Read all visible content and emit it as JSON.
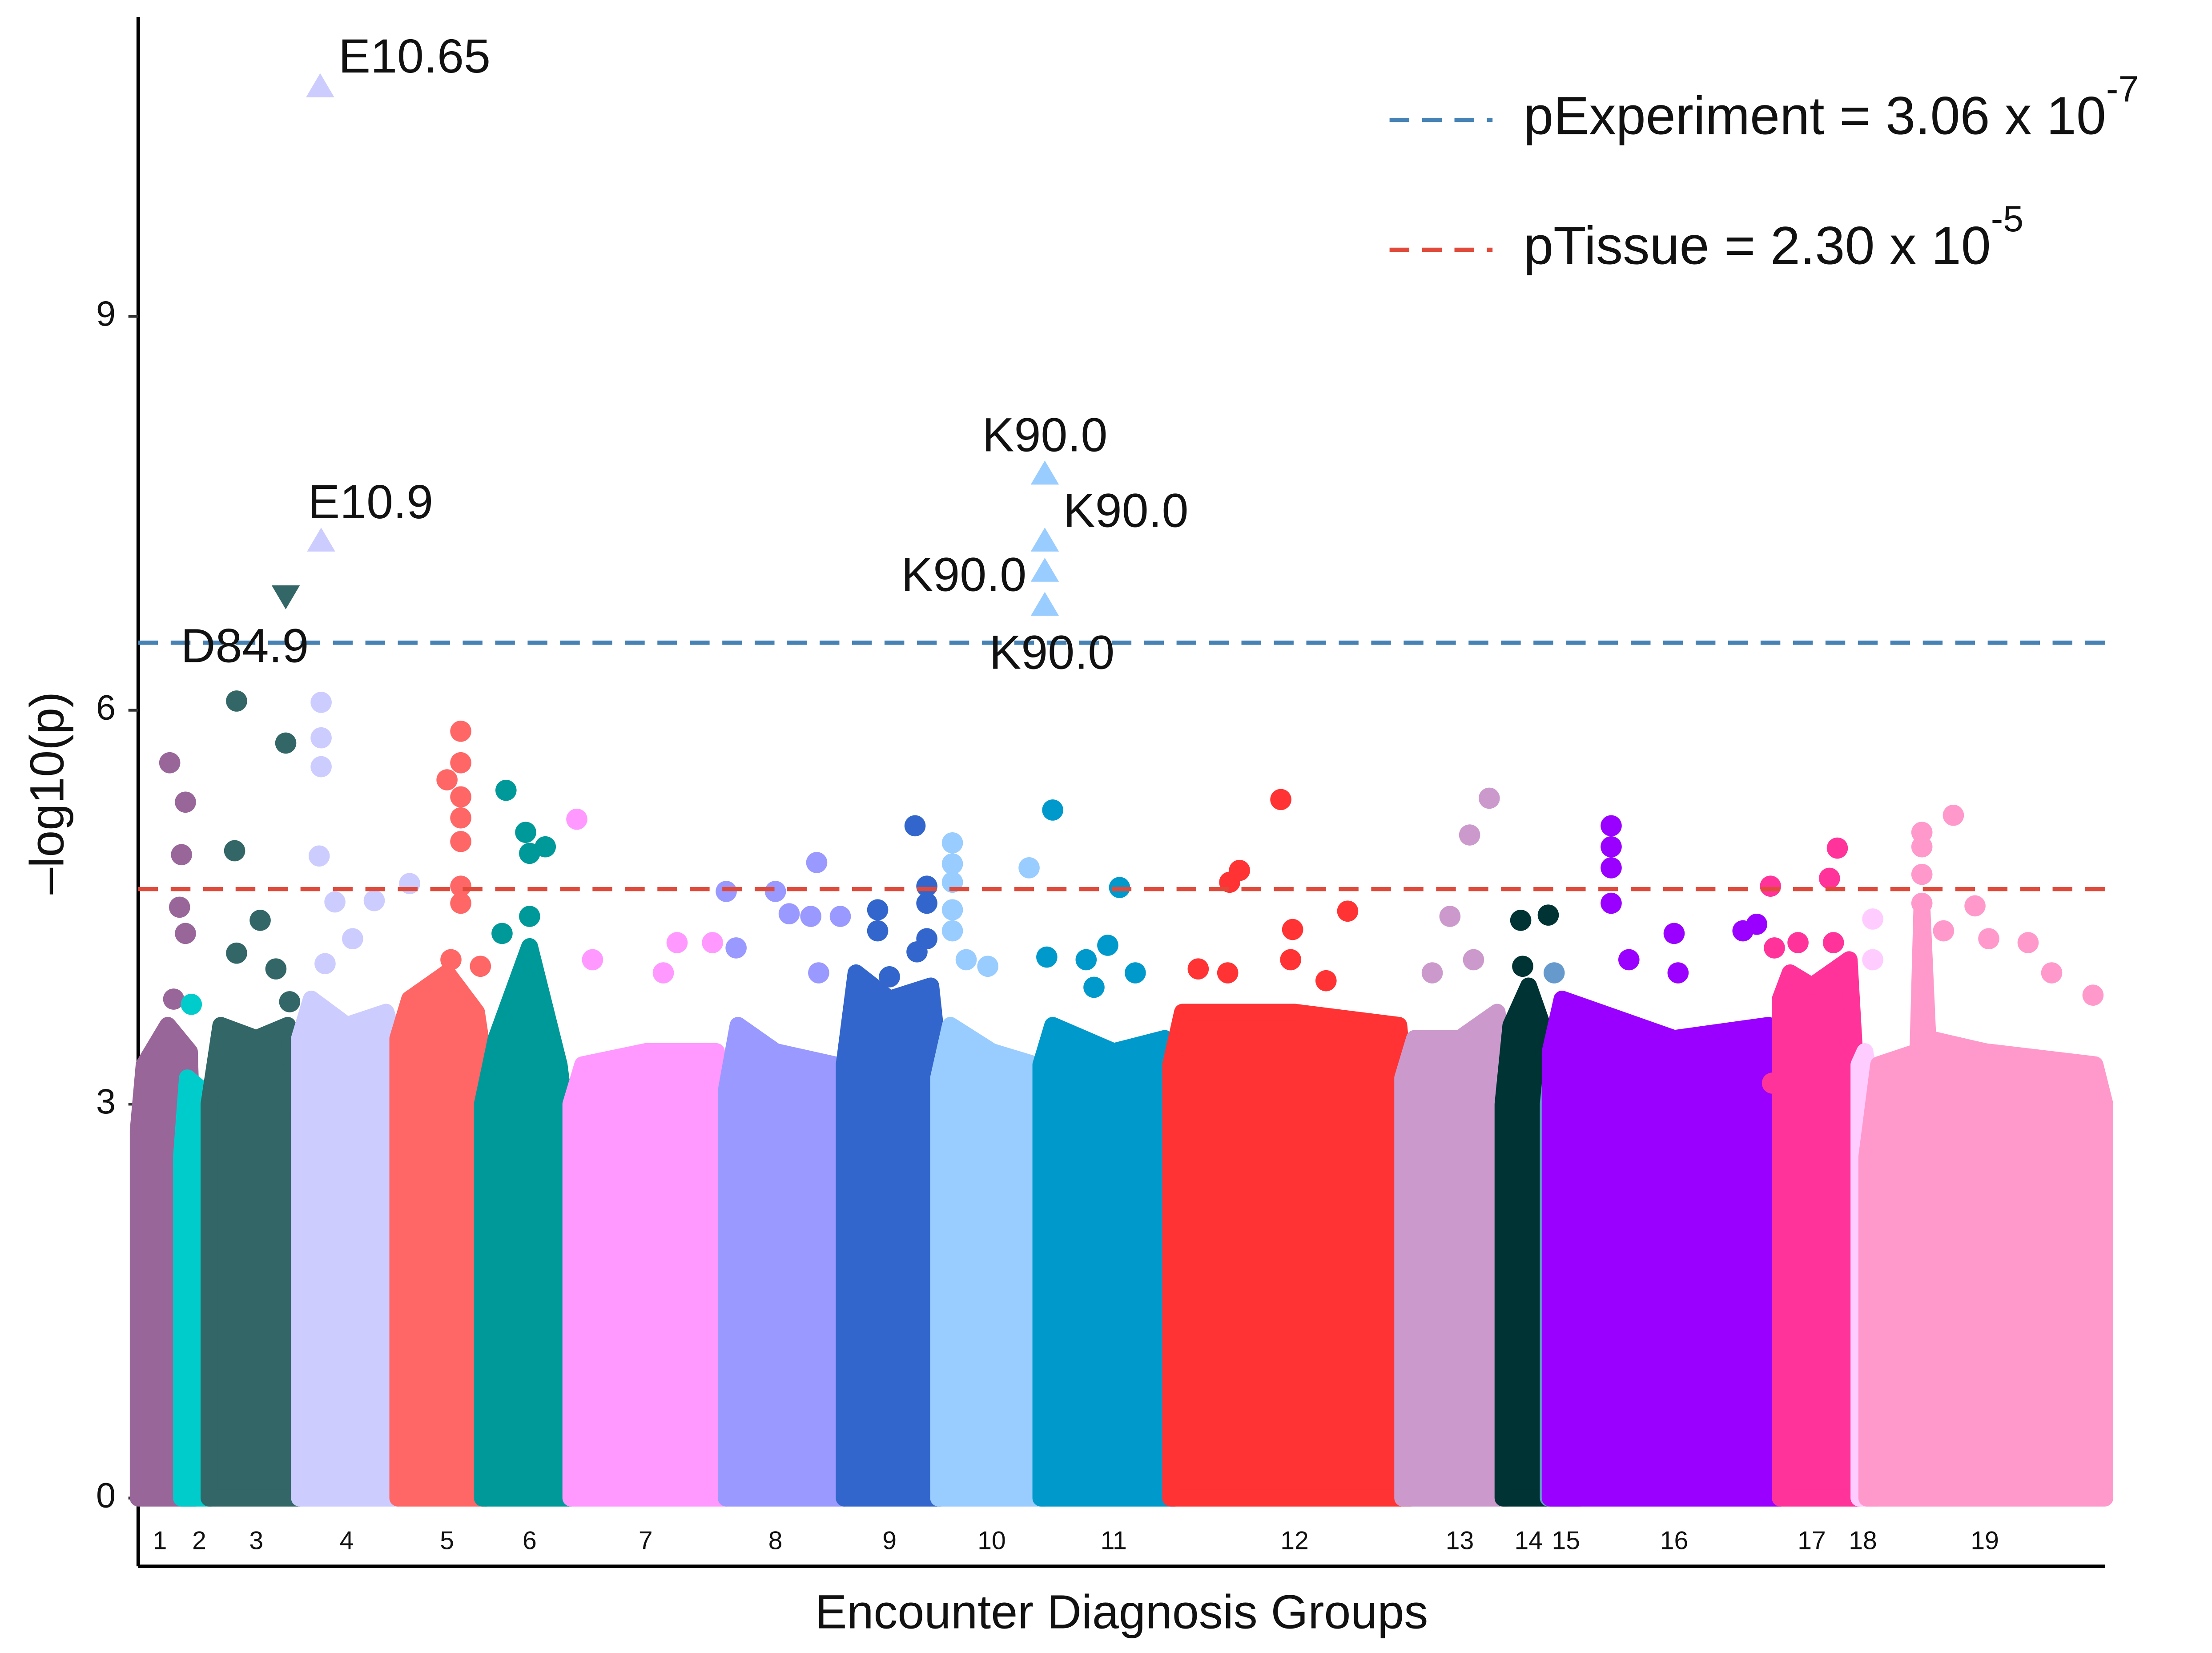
{
  "chart_data": {
    "type": "scatter",
    "x_label": "Encounter Diagnosis Groups",
    "y_label": "–log10(p)",
    "xlim": [
      0,
      100
    ],
    "ylim": [
      -0.52,
      11.28
    ],
    "yticks": [
      0,
      3,
      6,
      9
    ],
    "xticks": [
      {
        "value": 1.1,
        "label": "1"
      },
      {
        "value": 3.1,
        "label": "2"
      },
      {
        "value": 6.0,
        "label": "3"
      },
      {
        "value": 10.6,
        "label": "4"
      },
      {
        "value": 15.7,
        "label": "5"
      },
      {
        "value": 19.9,
        "label": "6"
      },
      {
        "value": 25.8,
        "label": "7"
      },
      {
        "value": 32.4,
        "label": "8"
      },
      {
        "value": 38.2,
        "label": "9"
      },
      {
        "value": 43.4,
        "label": "10"
      },
      {
        "value": 49.6,
        "label": "11"
      },
      {
        "value": 58.8,
        "label": "12"
      },
      {
        "value": 67.2,
        "label": "13"
      },
      {
        "value": 70.7,
        "label": "14"
      },
      {
        "value": 72.6,
        "label": "15"
      },
      {
        "value": 78.1,
        "label": "16"
      },
      {
        "value": 85.1,
        "label": "17"
      },
      {
        "value": 87.7,
        "label": "18"
      },
      {
        "value": 93.9,
        "label": "19"
      }
    ],
    "legend": "top-right",
    "hlines": [
      {
        "value": 6.514,
        "color": "#4682b4",
        "label": "pExperiment = 3.06 x 10",
        "exponent": "-7"
      },
      {
        "value": 4.638,
        "color": "#e04a3a",
        "label": "pTissue = 2.30 x 10",
        "exponent": "-5"
      }
    ],
    "series": [
      {
        "color": "#996699",
        "envelope": {
          "x": [
            0,
            0.3,
            1.5,
            2.6,
            2.9
          ],
          "values": [
            2.8,
            3.3,
            3.6,
            3.4,
            2.0
          ]
        },
        "x": [
          1.6,
          2.4,
          2.2,
          2.1,
          2.4,
          1.8
        ],
        "values": [
          5.6,
          5.3,
          4.9,
          4.5,
          4.3,
          3.8
        ]
      },
      {
        "color": "#00CCCC",
        "envelope": {
          "x": [
            2.2,
            2.5,
            3.3,
            3.7
          ],
          "values": [
            2.6,
            3.2,
            3.1,
            2.3
          ]
        },
        "x": [
          2.7
        ],
        "values": [
          3.76
        ]
      },
      {
        "color": "#336666",
        "envelope": {
          "x": [
            3.6,
            4.2,
            6.0,
            7.6,
            8.2
          ],
          "values": [
            3.0,
            3.6,
            3.5,
            3.6,
            2.8
          ]
        },
        "x": [
          5.0,
          4.9,
          7.5,
          6.2,
          5.0,
          7.0,
          7.7
        ],
        "values": [
          6.07,
          4.93,
          5.75,
          4.4,
          4.15,
          4.03,
          3.78
        ]
      },
      {
        "color": "#CCCCFF",
        "envelope": {
          "x": [
            8.2,
            8.8,
            10.6,
            12.6,
            13.2
          ],
          "values": [
            3.5,
            3.8,
            3.6,
            3.7,
            3.4
          ]
        },
        "x": [
          9.3,
          9.3,
          9.3,
          9.2,
          10.0,
          12.0,
          13.8,
          10.9,
          9.5
        ],
        "values": [
          6.06,
          5.79,
          5.57,
          4.89,
          4.54,
          4.55,
          4.68,
          4.26,
          4.07
        ]
      },
      {
        "color": "#FF6666",
        "envelope": {
          "x": [
            13.2,
            13.8,
            15.7,
            17.2,
            17.7
          ],
          "values": [
            3.5,
            3.8,
            4.0,
            3.7,
            3.2
          ]
        },
        "x": [
          16.4,
          16.4,
          15.7,
          16.4,
          16.4,
          16.4,
          16.4,
          16.4,
          15.9,
          17.4
        ],
        "values": [
          5.84,
          5.6,
          5.47,
          5.34,
          5.18,
          5.0,
          4.66,
          4.53,
          4.1,
          4.05
        ]
      },
      {
        "color": "#009999",
        "envelope": {
          "x": [
            17.5,
            18.2,
            19.9,
            21.4,
            22.0
          ],
          "values": [
            3.0,
            3.5,
            4.2,
            3.3,
            2.6
          ]
        },
        "x": [
          18.7,
          19.7,
          20.7,
          19.9,
          18.5,
          19.9
        ],
        "values": [
          5.39,
          5.07,
          4.96,
          4.91,
          4.3,
          4.43
        ]
      },
      {
        "color": "#FF99FF",
        "envelope": {
          "x": [
            22.0,
            22.6,
            25.8,
            29.4,
            29.9
          ],
          "values": [
            3.0,
            3.3,
            3.4,
            3.4,
            3.0
          ]
        },
        "x": [
          22.3,
          23.1,
          27.4,
          29.2,
          26.7
        ],
        "values": [
          5.17,
          4.1,
          4.23,
          4.23,
          4.0
        ]
      },
      {
        "color": "#9999FF",
        "envelope": {
          "x": [
            29.9,
            30.5,
            32.4,
            35.4,
            35.9
          ],
          "values": [
            3.1,
            3.6,
            3.4,
            3.3,
            3.0
          ]
        },
        "x": [
          34.5,
          29.9,
          32.4,
          33.1,
          34.2,
          35.7,
          30.4,
          34.6
        ],
        "values": [
          4.84,
          4.62,
          4.62,
          4.45,
          4.43,
          4.43,
          4.19,
          4.0
        ]
      },
      {
        "color": "#3366CC",
        "envelope": {
          "x": [
            35.9,
            36.5,
            38.2,
            40.3,
            40.8
          ],
          "values": [
            3.3,
            4.0,
            3.8,
            3.9,
            3.2
          ]
        },
        "x": [
          39.5,
          40.1,
          40.1,
          37.6,
          37.6,
          40.1,
          39.6,
          38.2
        ],
        "values": [
          5.12,
          4.66,
          4.53,
          4.48,
          4.32,
          4.26,
          4.16,
          3.97
        ]
      },
      {
        "color": "#99CCFF",
        "envelope": {
          "x": [
            40.7,
            41.3,
            43.4,
            45.6,
            46.1
          ],
          "values": [
            3.2,
            3.6,
            3.4,
            3.3,
            3.2
          ]
        },
        "x": [
          41.4,
          41.4,
          41.4,
          41.4,
          41.4,
          45.3,
          42.1,
          43.2
        ],
        "values": [
          4.99,
          4.83,
          4.69,
          4.48,
          4.32,
          4.8,
          4.1,
          4.05
        ]
      },
      {
        "color": "#0099CC",
        "envelope": {
          "x": [
            45.9,
            46.5,
            49.6,
            52.2,
            52.7
          ],
          "values": [
            3.3,
            3.6,
            3.4,
            3.5,
            3.1
          ]
        },
        "x": [
          46.5,
          49.9,
          49.3,
          48.2,
          50.7,
          48.6,
          46.2
        ],
        "values": [
          5.24,
          4.65,
          4.21,
          4.1,
          4.0,
          3.89,
          4.12
        ]
      },
      {
        "color": "#FF3333",
        "envelope": {
          "x": [
            52.5,
            53.1,
            58.8,
            64.1,
            64.7
          ],
          "values": [
            3.3,
            3.7,
            3.7,
            3.6,
            2.6
          ]
        },
        "x": [
          58.1,
          56.0,
          55.5,
          61.5,
          58.7,
          53.9,
          55.4,
          58.6,
          60.4
        ],
        "values": [
          5.32,
          4.78,
          4.69,
          4.47,
          4.33,
          4.03,
          4.0,
          4.1,
          3.94
        ]
      },
      {
        "color": "#CC99CC",
        "envelope": {
          "x": [
            64.3,
            64.9,
            67.2,
            69.1,
            69.6
          ],
          "values": [
            3.2,
            3.5,
            3.5,
            3.7,
            3.0
          ]
        },
        "x": [
          68.7,
          67.7,
          66.7,
          67.9,
          65.8
        ],
        "values": [
          5.33,
          5.05,
          4.43,
          4.1,
          4.0
        ]
      },
      {
        "color": "#003333",
        "envelope": {
          "x": [
            69.4,
            69.8,
            70.7,
            71.4,
            71.7
          ],
          "values": [
            3.0,
            3.6,
            3.9,
            3.6,
            2.8
          ]
        },
        "x": [
          70.3,
          71.7,
          70.4
        ],
        "values": [
          4.4,
          4.44,
          4.05
        ]
      },
      {
        "color": "#6699CC",
        "envelope": {
          "x": [
            71.7,
            72.1,
            72.9,
            73.3
          ],
          "values": [
            3.0,
            3.6,
            3.5,
            3.0
          ]
        },
        "x": [
          72.0
        ],
        "values": [
          4.0
        ]
      },
      {
        "color": "#9900FF",
        "envelope": {
          "x": [
            71.8,
            72.4,
            78.1,
            82.9,
            83.5
          ],
          "values": [
            3.4,
            3.8,
            3.5,
            3.6,
            3.3
          ]
        },
        "x": [
          74.9,
          74.9,
          74.9,
          74.9,
          78.1,
          82.3,
          81.6,
          78.3,
          75.8
        ],
        "values": [
          5.12,
          4.96,
          4.8,
          4.53,
          4.3,
          4.37,
          4.32,
          4.0,
          4.1
        ]
      },
      {
        "color": "#FF3399",
        "envelope": {
          "x": [
            83.5,
            84.0,
            85.1,
            87.0,
            87.5
          ],
          "values": [
            3.8,
            4.0,
            3.9,
            4.1,
            2.8
          ]
        },
        "x": [
          86.4,
          86.0,
          83.0,
          83.2,
          84.4,
          86.2,
          83.1
        ],
        "values": [
          4.95,
          4.72,
          4.66,
          4.19,
          4.23,
          4.23,
          3.16
        ]
      },
      {
        "color": "#FFCCFF",
        "envelope": {
          "x": [
            87.5,
            87.8,
            88.4
          ],
          "values": [
            3.3,
            3.4,
            2.8
          ]
        },
        "x": [
          88.2,
          88.2
        ],
        "values": [
          4.41,
          4.1
        ]
      },
      {
        "color": "#FF99CC",
        "envelope": {
          "x": [
            87.9,
            88.5,
            90.5,
            90.7,
            91.0,
            93.9,
            99.5,
            100
          ],
          "values": [
            2.6,
            3.3,
            3.4,
            4.5,
            3.5,
            3.4,
            3.3,
            3.0
          ]
        },
        "x": [
          92.3,
          90.7,
          90.7,
          90.7,
          90.7,
          93.4,
          91.8,
          94.1,
          96.1,
          97.3,
          99.4
        ],
        "values": [
          5.2,
          5.07,
          4.96,
          4.75,
          4.53,
          4.51,
          4.32,
          4.26,
          4.23,
          4.0,
          3.83
        ]
      }
    ],
    "annotations": [
      {
        "text": "E10.65",
        "x": 9.25,
        "y": 10.76,
        "marker": "triangle-up",
        "color": "#CCCCFF",
        "side": "right"
      },
      {
        "text": "E10.9",
        "x": 9.3,
        "y": 7.3,
        "marker": "triangle-up",
        "color": "#CCCCFF",
        "side": "above"
      },
      {
        "text": "D84.9",
        "x": 7.5,
        "y": 6.86,
        "marker": "triangle-down",
        "color": "#336666",
        "side": "below"
      },
      {
        "text": "K90.0",
        "x": 46.1,
        "y": 7.81,
        "marker": "triangle-up",
        "color": "#99CCFF",
        "side": "above"
      },
      {
        "text": "K90.0",
        "x": 46.1,
        "y": 7.3,
        "marker": "triangle-up",
        "color": "#99CCFF",
        "side": "right"
      },
      {
        "text": "K90.0",
        "x": 46.1,
        "y": 7.07,
        "marker": "triangle-up",
        "color": "#99CCFF",
        "side": "left"
      },
      {
        "text": "K90.0",
        "x": 46.1,
        "y": 6.81,
        "marker": "triangle-up",
        "color": "#99CCFF",
        "side": "below"
      }
    ]
  }
}
